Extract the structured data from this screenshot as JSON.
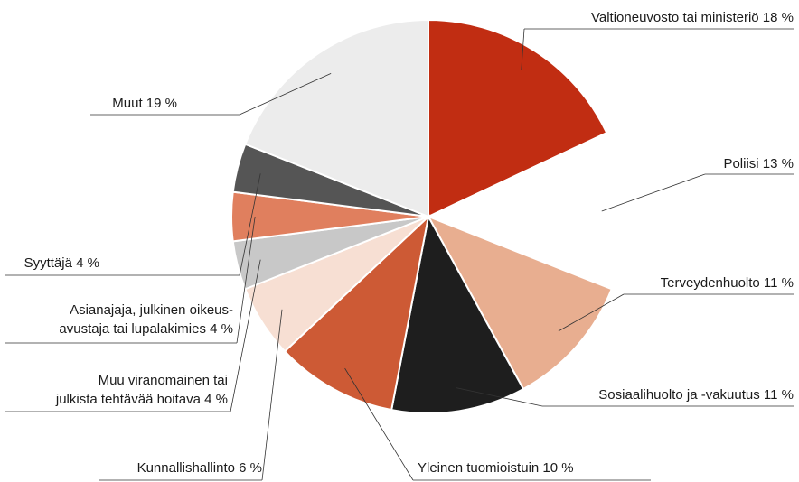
{
  "chart_data": {
    "type": "pie",
    "categories": [
      "Valtioneuvosto tai ministeriö",
      "Poliisi",
      "Terveydenhuolto",
      "Sosiaalihuolto ja -vakuutus",
      "Yleinen tuomioistuin",
      "Kunnallishallinto",
      "Muu viranomainen tai\njulkista tehtävää hoitava",
      "Asianajaja, julkinen oikeus-\navustaja tai lupalakimies",
      "Syyttäjä",
      "Muut"
    ],
    "values": [
      18,
      13,
      11,
      11,
      10,
      6,
      4,
      4,
      4,
      19
    ],
    "value_labels": [
      "18 %",
      "13 %",
      "11 %",
      "11 %",
      "10 %",
      "6 %",
      "4 %",
      "4 %",
      "4 %",
      "19 %"
    ],
    "colors": [
      "#c12d12",
      "#ffffff",
      "#e8ae90",
      "#1e1e1e",
      "#cd5a35",
      "#f7dfd3",
      "#c8c8c8",
      "#e07f5e",
      "#555555",
      "#ececec"
    ]
  }
}
